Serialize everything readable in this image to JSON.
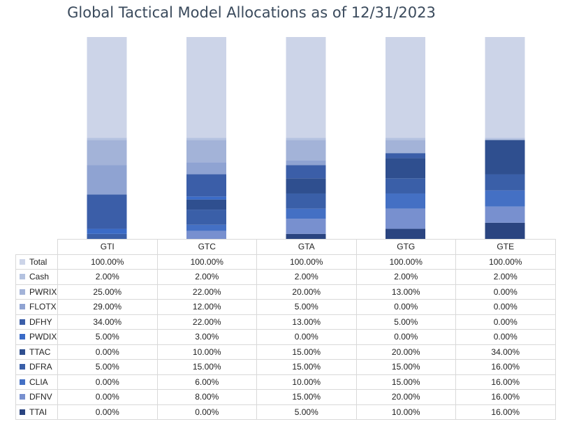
{
  "chart_data": {
    "type": "bar",
    "stacked": true,
    "title": "Global Tactical Model Allocations as of 12/31/2023",
    "categories": [
      "GTI",
      "GTC",
      "GTA",
      "GTG",
      "GTE"
    ],
    "series": [
      {
        "name": "Total",
        "color": "#ccd4e8",
        "values": [
          100,
          100,
          100,
          100,
          100
        ],
        "labels": [
          "100.00%",
          "100.00%",
          "100.00%",
          "100.00%",
          "100.00%"
        ]
      },
      {
        "name": "Cash",
        "color": "#b4c2e0",
        "values": [
          2,
          2,
          2,
          2,
          2
        ],
        "labels": [
          "2.00%",
          "2.00%",
          "2.00%",
          "2.00%",
          "2.00%"
        ]
      },
      {
        "name": "PWRIX",
        "color": "#a3b3d8",
        "values": [
          25,
          22,
          20,
          13,
          0
        ],
        "labels": [
          "25.00%",
          "22.00%",
          "20.00%",
          "13.00%",
          "0.00%"
        ]
      },
      {
        "name": "FLOTX",
        "color": "#8fa3d2",
        "values": [
          29,
          12,
          5,
          0,
          0
        ],
        "labels": [
          "29.00%",
          "12.00%",
          "5.00%",
          "0.00%",
          "0.00%"
        ]
      },
      {
        "name": "DFHY",
        "color": "#3b5ea8",
        "values": [
          34,
          22,
          13,
          5,
          0
        ],
        "labels": [
          "34.00%",
          "22.00%",
          "13.00%",
          "5.00%",
          "0.00%"
        ]
      },
      {
        "name": "PWDIX",
        "color": "#3a6bc7",
        "values": [
          5,
          3,
          0,
          0,
          0
        ],
        "labels": [
          "5.00%",
          "3.00%",
          "0.00%",
          "0.00%",
          "0.00%"
        ]
      },
      {
        "name": "TTAC",
        "color": "#2f4f8f",
        "values": [
          0,
          10,
          15,
          20,
          34
        ],
        "labels": [
          "0.00%",
          "10.00%",
          "15.00%",
          "20.00%",
          "34.00%"
        ]
      },
      {
        "name": "DFRA",
        "color": "#3a5fa8",
        "values": [
          5,
          15,
          15,
          15,
          16
        ],
        "labels": [
          "5.00%",
          "15.00%",
          "15.00%",
          "15.00%",
          "16.00%"
        ]
      },
      {
        "name": "CLIA",
        "color": "#4470c4",
        "values": [
          0,
          6,
          10,
          15,
          16
        ],
        "labels": [
          "0.00%",
          "6.00%",
          "10.00%",
          "15.00%",
          "16.00%"
        ]
      },
      {
        "name": "DFNV",
        "color": "#7890cf",
        "values": [
          0,
          8,
          15,
          20,
          16
        ],
        "labels": [
          "0.00%",
          "8.00%",
          "15.00%",
          "20.00%",
          "16.00%"
        ]
      },
      {
        "name": "TTAI",
        "color": "#2a4480",
        "values": [
          0,
          0,
          5,
          10,
          16
        ],
        "labels": [
          "0.00%",
          "0.00%",
          "5.00%",
          "10.00%",
          "16.00%"
        ]
      }
    ],
    "xlabel": "",
    "ylabel": "",
    "ylim": [
      0,
      200
    ],
    "grid": false,
    "legend": "data-table-below"
  }
}
